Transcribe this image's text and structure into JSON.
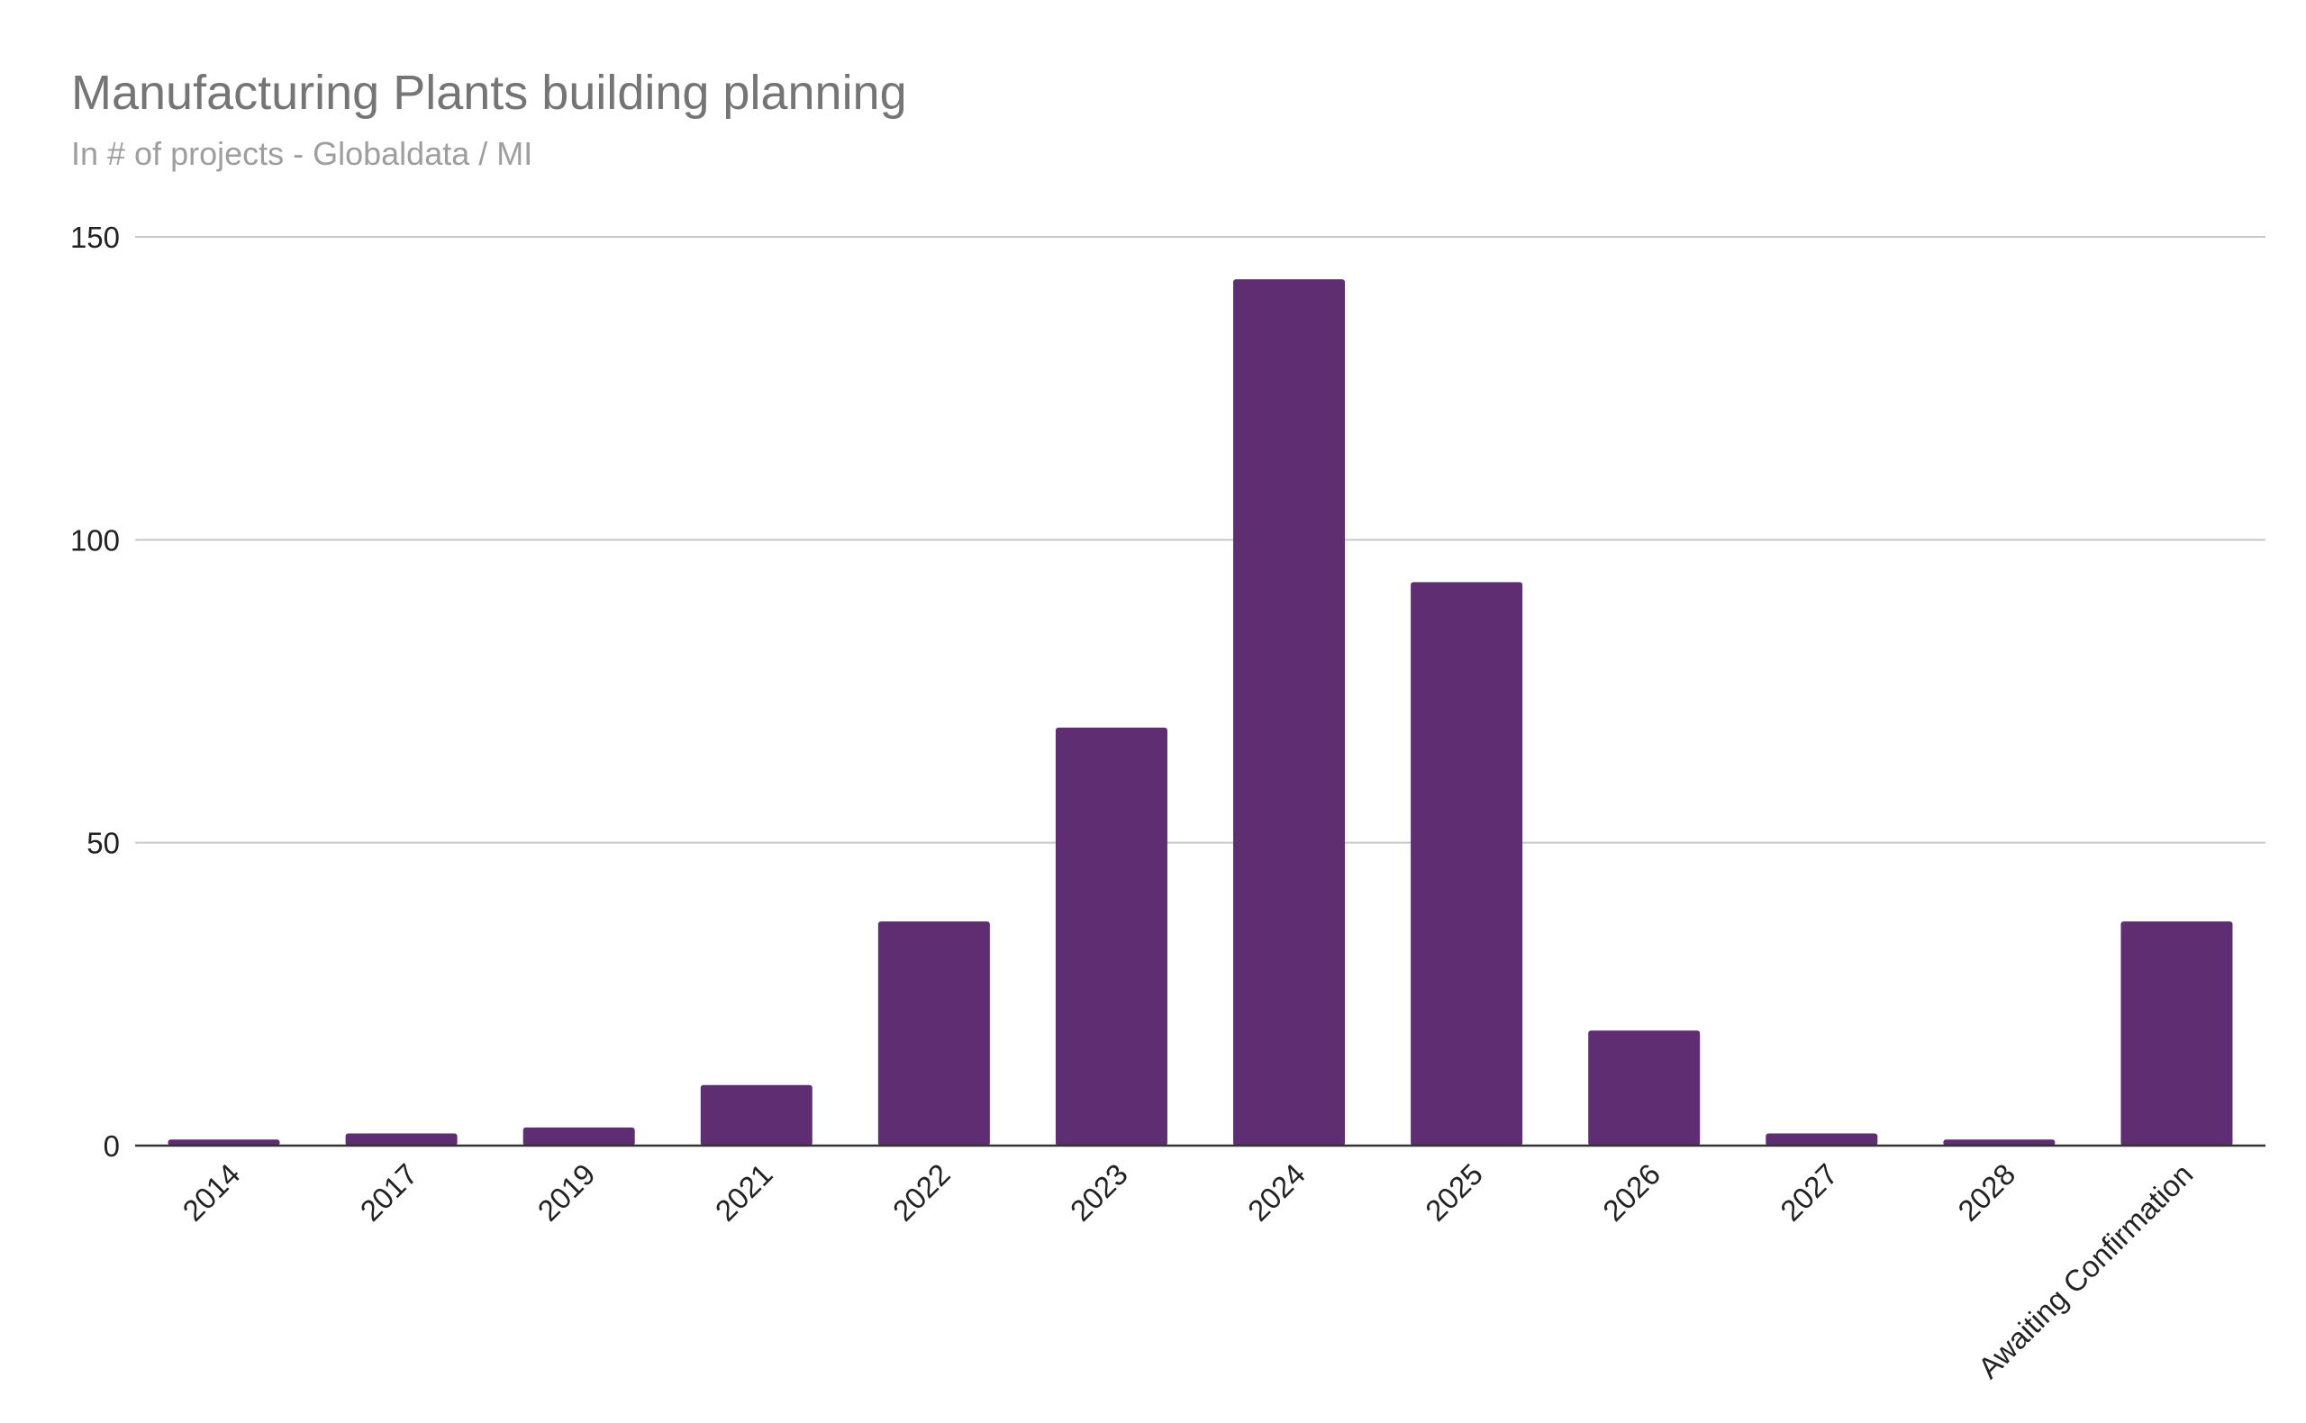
{
  "chart_data": {
    "type": "bar",
    "title": "Manufacturing Plants building planning",
    "subtitle": "In # of projects - Globaldata / MI",
    "xlabel": "",
    "ylabel": "",
    "categories": [
      "2014",
      "2017",
      "2019",
      "2021",
      "2022",
      "2023",
      "2024",
      "2025",
      "2026",
      "2027",
      "2028",
      "Awaiting Confirmation"
    ],
    "values": [
      1,
      2,
      3,
      10,
      37,
      69,
      143,
      93,
      19,
      2,
      1,
      37
    ],
    "ylim": [
      0,
      150
    ],
    "yticks": [
      0,
      50,
      100,
      150
    ],
    "grid": true,
    "legend": "none",
    "bar_color": "#5e2d72",
    "gridline_color": "#c8c8cc",
    "axis_color": "#333333"
  }
}
